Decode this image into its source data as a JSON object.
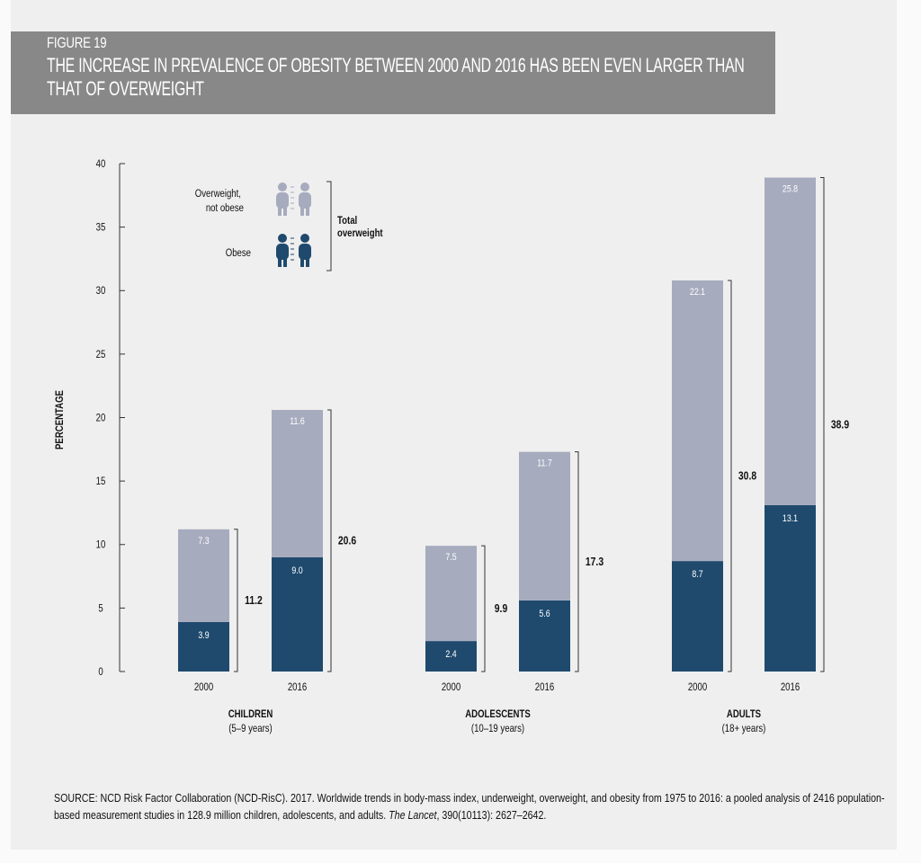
{
  "header": {
    "figure_label": "FIGURE 19",
    "title": "THE INCREASE IN PREVALENCE OF OBESITY BETWEEN 2000 AND 2016 HAS BEEN EVEN LARGER THAN THAT OF OVERWEIGHT"
  },
  "source": {
    "prefix": "SOURCE: NCD Risk Factor Collaboration (NCD-RisC). 2017. Worldwide trends in body-mass index, underweight, overweight, and obesity from 1975 to 2016: a pooled analysis of 2416 population-based measurement studies in 128.9 million children, adolescents, and adults. ",
    "journal": "The Lancet",
    "suffix": ", 390(10113): 2627–2642."
  },
  "colors": {
    "obese": "#1f4a6e",
    "overweight_not_obese": "#a7abbe",
    "header": "#888888"
  },
  "chart_data": {
    "type": "bar",
    "stacked": true,
    "ylabel": "PERCENTAGE",
    "ylim": [
      0,
      40
    ],
    "yticks": [
      0,
      5,
      10,
      15,
      20,
      25,
      30,
      35,
      40
    ],
    "grid": false,
    "legend": {
      "position": "top-left",
      "items": [
        "Overweight, not obese",
        "Obese"
      ],
      "bracket_label": "Total overweight",
      "icons": [
        "children-icon-light",
        "children-icon-dark"
      ]
    },
    "groups": [
      {
        "name": "CHILDREN",
        "subtitle": "(5–9 years)"
      },
      {
        "name": "ADOLESCENTS",
        "subtitle": "(10–19 years)"
      },
      {
        "name": "ADULTS",
        "subtitle": "(18+ years)"
      }
    ],
    "categories": [
      "2000",
      "2016",
      "2000",
      "2016",
      "2000",
      "2016"
    ],
    "series": [
      {
        "name": "Obese",
        "values": [
          3.9,
          9.0,
          2.4,
          5.6,
          8.7,
          13.1
        ]
      },
      {
        "name": "Overweight, not obese",
        "values": [
          7.3,
          11.6,
          7.5,
          11.7,
          22.1,
          25.8
        ]
      }
    ],
    "totals": [
      11.2,
      20.6,
      9.9,
      17.3,
      30.8,
      38.9
    ]
  }
}
